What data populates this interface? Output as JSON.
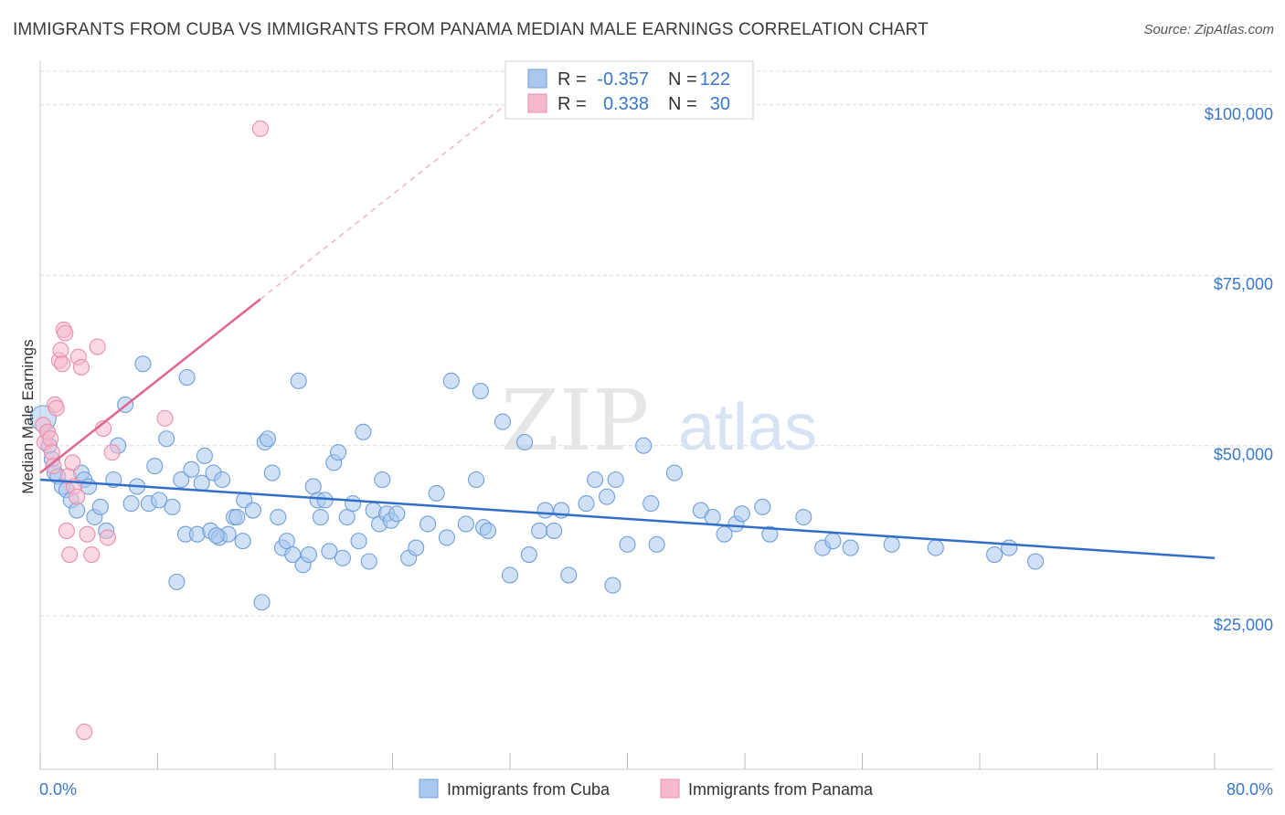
{
  "title": "IMMIGRANTS FROM CUBA VS IMMIGRANTS FROM PANAMA MEDIAN MALE EARNINGS CORRELATION CHART",
  "source": "Source: ZipAtlas.com",
  "watermark": {
    "zip": "ZIP",
    "atlas": "atlas"
  },
  "colors": {
    "cuba_fill": "#aac8ee",
    "cuba_stroke": "#6f9fda",
    "cuba_line": "#2f6fca",
    "panama_fill": "#f6b9cc",
    "panama_stroke": "#ea8eab",
    "panama_line": "#e0668f",
    "grid": "#d9d9d9",
    "tick_text": "#3a78c9"
  },
  "legend": {
    "rows": [
      {
        "r_label": "R =",
        "r_value": "-0.357",
        "n_label": "N =",
        "n_value": "122"
      },
      {
        "r_label": "R =",
        "r_value": "0.338",
        "n_label": "N =",
        "n_value": "30"
      }
    ]
  },
  "chart_data": {
    "type": "scatter",
    "title": "IMMIGRANTS FROM CUBA VS IMMIGRANTS FROM PANAMA MEDIAN MALE EARNINGS CORRELATION CHART",
    "xlabel": "",
    "ylabel": "Median Male Earnings",
    "xlim": [
      0,
      80
    ],
    "ylim": [
      2500,
      106000
    ],
    "x_tick_labels": [
      "0.0%",
      "80.0%"
    ],
    "y_ticks": [
      {
        "value": 25000,
        "label": "$25,000"
      },
      {
        "value": 50000,
        "label": "$50,000"
      },
      {
        "value": 75000,
        "label": "$75,000"
      },
      {
        "value": 100000,
        "label": "$100,000"
      }
    ],
    "series": [
      {
        "name": "Immigrants from Cuba",
        "r": -0.357,
        "n": 122,
        "trend": {
          "x0": 0,
          "y0": 45000,
          "x1": 80,
          "y1": 33500
        },
        "points": [
          [
            0.2,
            54000
          ],
          [
            0.5,
            52000
          ],
          [
            0.6,
            50000
          ],
          [
            0.8,
            48000
          ],
          [
            1.0,
            46000
          ],
          [
            1.2,
            45500
          ],
          [
            1.5,
            44000
          ],
          [
            1.8,
            43500
          ],
          [
            2.1,
            42000
          ],
          [
            2.5,
            40500
          ],
          [
            2.8,
            46000
          ],
          [
            3.0,
            45000
          ],
          [
            3.3,
            44000
          ],
          [
            3.7,
            39500
          ],
          [
            4.1,
            41000
          ],
          [
            4.5,
            37500
          ],
          [
            5.0,
            45000
          ],
          [
            5.3,
            50000
          ],
          [
            5.8,
            56000
          ],
          [
            6.2,
            41500
          ],
          [
            6.6,
            44000
          ],
          [
            7.0,
            62000
          ],
          [
            7.4,
            41500
          ],
          [
            7.8,
            47000
          ],
          [
            8.1,
            42000
          ],
          [
            8.6,
            51000
          ],
          [
            9.0,
            41000
          ],
          [
            9.3,
            30000
          ],
          [
            9.6,
            45000
          ],
          [
            9.9,
            37000
          ],
          [
            10.0,
            60000
          ],
          [
            10.3,
            46500
          ],
          [
            10.7,
            37000
          ],
          [
            11.0,
            44500
          ],
          [
            11.2,
            48500
          ],
          [
            11.6,
            37500
          ],
          [
            11.8,
            46000
          ],
          [
            12.2,
            36500
          ],
          [
            12.4,
            45000
          ],
          [
            12.8,
            37000
          ],
          [
            13.2,
            39500
          ],
          [
            13.4,
            39500
          ],
          [
            13.8,
            36000
          ],
          [
            13.9,
            42000
          ],
          [
            14.5,
            40500
          ],
          [
            15.1,
            27000
          ],
          [
            15.3,
            50500
          ],
          [
            15.5,
            51000
          ],
          [
            15.8,
            46000
          ],
          [
            16.2,
            39500
          ],
          [
            16.5,
            35000
          ],
          [
            16.8,
            36000
          ],
          [
            17.2,
            34000
          ],
          [
            17.6,
            59500
          ],
          [
            17.9,
            32500
          ],
          [
            18.3,
            34000
          ],
          [
            18.6,
            44000
          ],
          [
            18.9,
            42000
          ],
          [
            19.1,
            39500
          ],
          [
            19.4,
            42000
          ],
          [
            19.7,
            34500
          ],
          [
            20.0,
            47500
          ],
          [
            20.3,
            49000
          ],
          [
            20.6,
            33500
          ],
          [
            20.9,
            39500
          ],
          [
            21.3,
            41500
          ],
          [
            21.7,
            36000
          ],
          [
            22.0,
            52000
          ],
          [
            22.4,
            33000
          ],
          [
            22.7,
            40500
          ],
          [
            23.1,
            38500
          ],
          [
            23.3,
            45000
          ],
          [
            23.6,
            40000
          ],
          [
            23.9,
            39000
          ],
          [
            24.3,
            40000
          ],
          [
            25.1,
            33500
          ],
          [
            25.6,
            35000
          ],
          [
            26.4,
            38500
          ],
          [
            27.0,
            43000
          ],
          [
            27.7,
            36500
          ],
          [
            28.0,
            59500
          ],
          [
            29.0,
            38500
          ],
          [
            29.7,
            45000
          ],
          [
            30.0,
            58000
          ],
          [
            30.2,
            38000
          ],
          [
            30.5,
            37500
          ],
          [
            31.5,
            53500
          ],
          [
            32.0,
            31000
          ],
          [
            33.0,
            50500
          ],
          [
            33.3,
            34000
          ],
          [
            34.0,
            37500
          ],
          [
            34.4,
            40500
          ],
          [
            35.0,
            37500
          ],
          [
            35.5,
            40500
          ],
          [
            36.0,
            31000
          ],
          [
            37.2,
            41500
          ],
          [
            37.8,
            45000
          ],
          [
            38.6,
            42500
          ],
          [
            39.0,
            29500
          ],
          [
            39.2,
            45000
          ],
          [
            40.0,
            35500
          ],
          [
            41.1,
            50000
          ],
          [
            41.6,
            41500
          ],
          [
            42.0,
            35500
          ],
          [
            43.2,
            46000
          ],
          [
            45.0,
            40500
          ],
          [
            45.8,
            39500
          ],
          [
            46.6,
            37000
          ],
          [
            47.4,
            38500
          ],
          [
            47.8,
            40000
          ],
          [
            49.2,
            41000
          ],
          [
            49.7,
            37000
          ],
          [
            52.0,
            39500
          ],
          [
            53.3,
            35000
          ],
          [
            54.0,
            36000
          ],
          [
            55.2,
            35000
          ],
          [
            58.0,
            35500
          ],
          [
            61.0,
            35000
          ],
          [
            65.0,
            34000
          ],
          [
            66.0,
            35000
          ],
          [
            67.8,
            33000
          ],
          [
            12.0,
            36800
          ]
        ]
      },
      {
        "name": "Immigrants from Panama",
        "r": 0.338,
        "n": 30,
        "trend": {
          "x0": 0,
          "y0": 46000,
          "x1": 15,
          "y1": 71500,
          "x_dash_end": 32,
          "y_dash_end": 100500
        },
        "points": [
          [
            0.2,
            53000
          ],
          [
            0.3,
            50500
          ],
          [
            0.5,
            52000
          ],
          [
            0.7,
            51000
          ],
          [
            0.8,
            49000
          ],
          [
            0.9,
            47000
          ],
          [
            1.0,
            56000
          ],
          [
            1.1,
            55500
          ],
          [
            1.3,
            62500
          ],
          [
            1.4,
            64000
          ],
          [
            1.5,
            62000
          ],
          [
            1.6,
            67000
          ],
          [
            1.7,
            66500
          ],
          [
            1.8,
            37500
          ],
          [
            1.9,
            45500
          ],
          [
            2.0,
            34000
          ],
          [
            2.2,
            47500
          ],
          [
            2.3,
            44000
          ],
          [
            2.5,
            42500
          ],
          [
            2.6,
            63000
          ],
          [
            2.8,
            61500
          ],
          [
            3.0,
            8000
          ],
          [
            3.2,
            37000
          ],
          [
            3.5,
            34000
          ],
          [
            3.9,
            64500
          ],
          [
            4.3,
            52500
          ],
          [
            4.6,
            36500
          ],
          [
            4.9,
            49000
          ],
          [
            8.5,
            54000
          ],
          [
            15.0,
            96500
          ]
        ]
      }
    ]
  },
  "bottom_legend": [
    {
      "label": "Immigrants from Cuba"
    },
    {
      "label": "Immigrants from Panama"
    }
  ]
}
